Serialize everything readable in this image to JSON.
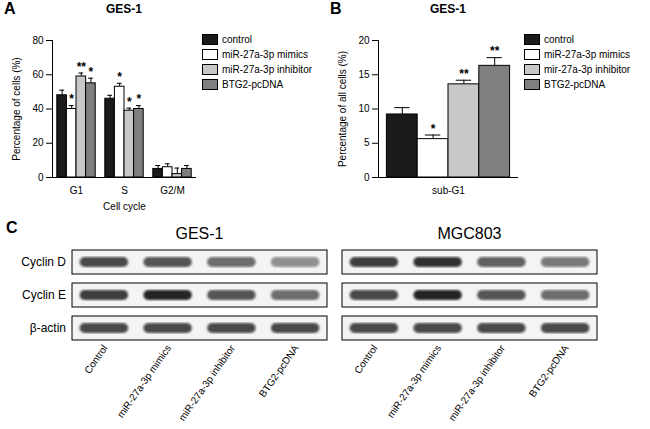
{
  "chart_data": [
    {
      "type": "bar",
      "label": "A",
      "title": "GES-1",
      "xlabel": "Cell cycle",
      "ylabel": "Percentage of cells (%)",
      "categories": [
        "G1",
        "S",
        "G2/M"
      ],
      "series": [
        {
          "name": "control",
          "color": "#1a1a1a",
          "values": [
            48,
            46,
            5
          ],
          "errors": [
            3,
            2,
            2
          ],
          "annotations": [
            null,
            null,
            null
          ]
        },
        {
          "name": "miR-27a-3p mimics",
          "color": "#ffffff",
          "values": [
            40,
            53,
            6
          ],
          "errors": [
            2,
            2,
            2
          ],
          "annotations": [
            "*",
            "*",
            null
          ]
        },
        {
          "name": "miR-27a-3p inhibitor",
          "color": "#c8c8c8",
          "values": [
            59,
            39,
            2
          ],
          "errors": [
            2,
            1.5,
            3.5
          ],
          "annotations": [
            "**",
            "*",
            null
          ]
        },
        {
          "name": "BTG2-pcDNA",
          "color": "#7f7f7f",
          "values": [
            55,
            40,
            5
          ],
          "errors": [
            3,
            2,
            2
          ],
          "annotations": [
            "*",
            "*",
            null
          ]
        }
      ],
      "ylim": [
        0,
        80
      ],
      "yticks": [
        0,
        20,
        40,
        60,
        80
      ],
      "grid": false,
      "legend": "right"
    },
    {
      "type": "bar",
      "label": "B",
      "title": "GES-1",
      "ylabel": "Percentage of all cells (%)",
      "categories": [
        "sub-G1"
      ],
      "series": [
        {
          "name": "control",
          "color": "#1a1a1a",
          "values": [
            9.2
          ],
          "errors": [
            1.0
          ],
          "annotations": [
            null
          ]
        },
        {
          "name": "miR-27a-3p mimics",
          "color": "#ffffff",
          "values": [
            5.6
          ],
          "errors": [
            0.6
          ],
          "annotations": [
            "*"
          ]
        },
        {
          "name": "mir-27a-3p inhibitor",
          "color": "#c8c8c8",
          "values": [
            13.6
          ],
          "errors": [
            0.6
          ],
          "annotations": [
            "**"
          ]
        },
        {
          "name": "BTG2-pcDNA",
          "color": "#7f7f7f",
          "values": [
            16.3
          ],
          "errors": [
            1.2
          ],
          "annotations": [
            "**"
          ]
        }
      ],
      "ylim": [
        0,
        20
      ],
      "yticks": [
        0,
        5,
        10,
        15,
        20
      ],
      "grid": false,
      "legend": "right"
    },
    {
      "type": "western_blot",
      "label": "C",
      "rows": [
        "Cyclin D",
        "Cyclin E",
        "β-actin"
      ],
      "categories": [
        "Control",
        "miR-27a-3p mimics",
        "miR-27a-3p inhibitor",
        "BTG2-pcDNA"
      ],
      "blots": [
        {
          "title": "GES-1",
          "values": [
            [
              0.75,
              0.7,
              0.6,
              0.45
            ],
            [
              0.8,
              0.9,
              0.7,
              0.6
            ],
            [
              0.75,
              0.75,
              0.75,
              0.75
            ]
          ]
        },
        {
          "title": "MGC803",
          "values": [
            [
              0.8,
              0.85,
              0.65,
              0.55
            ],
            [
              0.75,
              0.9,
              0.7,
              0.6
            ],
            [
              0.75,
              0.75,
              0.75,
              0.75
            ]
          ]
        }
      ]
    }
  ]
}
